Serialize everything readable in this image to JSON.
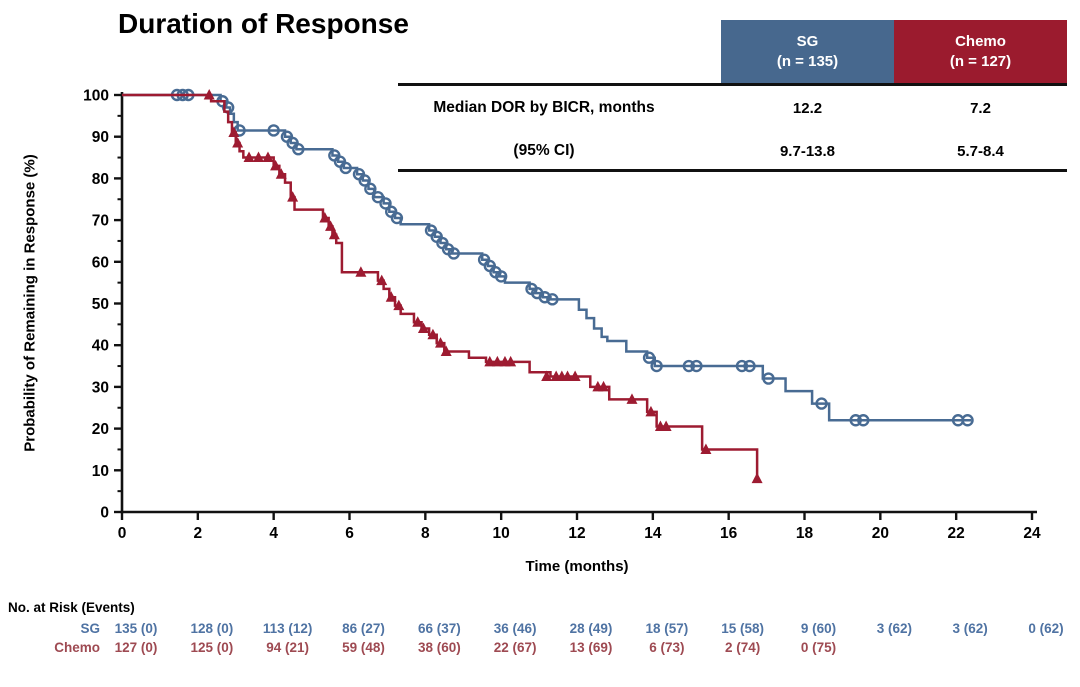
{
  "title": "Duration of Response",
  "summary_table": {
    "columns": [
      {
        "label": "SG",
        "sublabel": "(n = 135)",
        "color": "#47688e"
      },
      {
        "label": "Chemo",
        "sublabel": "(n = 127)",
        "color": "#9b1b2e"
      }
    ],
    "rows": [
      {
        "label": "Median DOR by BICR, months",
        "values": [
          "12.2",
          "7.2"
        ]
      },
      {
        "label": "(95% CI)",
        "values": [
          "9.7-13.8",
          "5.7-8.4"
        ]
      }
    ]
  },
  "chart_data": {
    "type": "line",
    "subtype": "kaplan-meier-step",
    "xlabel": "Time (months)",
    "ylabel": "Probability of Remaining in Response (%)",
    "xlim": [
      0,
      24
    ],
    "ylim": [
      0,
      100
    ],
    "xticks": [
      0,
      2,
      4,
      6,
      8,
      10,
      12,
      14,
      16,
      18,
      20,
      22,
      24
    ],
    "ytick_step": 10,
    "y_minor_step": 5,
    "grid": false,
    "legend_position": "none",
    "axis_color": "#111111",
    "series": [
      {
        "name": "SG",
        "color": "#486b93",
        "marker": "open-circle",
        "start": [
          0,
          100
        ],
        "steps": [
          [
            2.6,
            98.5
          ],
          [
            2.75,
            97
          ],
          [
            2.85,
            95.5
          ],
          [
            2.95,
            93.5
          ],
          [
            3.05,
            91.5
          ],
          [
            4.3,
            90
          ],
          [
            4.45,
            88.5
          ],
          [
            4.6,
            87
          ],
          [
            5.55,
            85.5
          ],
          [
            5.7,
            84
          ],
          [
            5.85,
            82.5
          ],
          [
            6.2,
            81
          ],
          [
            6.35,
            79.5
          ],
          [
            6.5,
            77.5
          ],
          [
            6.65,
            75.5
          ],
          [
            6.9,
            74
          ],
          [
            7.05,
            72
          ],
          [
            7.2,
            70.5
          ],
          [
            7.35,
            69
          ],
          [
            8.1,
            67.5
          ],
          [
            8.25,
            66
          ],
          [
            8.4,
            64.5
          ],
          [
            8.55,
            63
          ],
          [
            8.7,
            62
          ],
          [
            9.5,
            60.5
          ],
          [
            9.65,
            59
          ],
          [
            9.8,
            57.5
          ],
          [
            9.95,
            56.5
          ],
          [
            10.1,
            55
          ],
          [
            10.75,
            53.5
          ],
          [
            10.9,
            52.5
          ],
          [
            11.1,
            51.5
          ],
          [
            11.3,
            51
          ],
          [
            12.05,
            48.5
          ],
          [
            12.25,
            46.5
          ],
          [
            12.45,
            44
          ],
          [
            12.65,
            42
          ],
          [
            12.8,
            41
          ],
          [
            13.3,
            38.5
          ],
          [
            13.85,
            37
          ],
          [
            14.05,
            35
          ],
          [
            16.9,
            32
          ],
          [
            17.5,
            29
          ],
          [
            18.2,
            26
          ],
          [
            18.65,
            22
          ]
        ],
        "end_x": 22.4,
        "censors": [
          [
            1.45,
            100
          ],
          [
            1.6,
            100
          ],
          [
            1.75,
            100
          ],
          [
            2.65,
            98.5
          ],
          [
            2.8,
            97
          ],
          [
            3.1,
            91.5
          ],
          [
            4.0,
            91.5
          ],
          [
            4.35,
            90
          ],
          [
            4.5,
            88.5
          ],
          [
            4.65,
            87
          ],
          [
            5.6,
            85.5
          ],
          [
            5.75,
            84
          ],
          [
            5.9,
            82.5
          ],
          [
            6.25,
            81
          ],
          [
            6.4,
            79.5
          ],
          [
            6.55,
            77.5
          ],
          [
            6.75,
            75.5
          ],
          [
            6.95,
            74
          ],
          [
            7.1,
            72
          ],
          [
            7.25,
            70.5
          ],
          [
            8.15,
            67.5
          ],
          [
            8.3,
            66
          ],
          [
            8.45,
            64.5
          ],
          [
            8.6,
            63
          ],
          [
            8.75,
            62
          ],
          [
            9.55,
            60.5
          ],
          [
            9.7,
            59
          ],
          [
            9.85,
            57.5
          ],
          [
            10.0,
            56.5
          ],
          [
            10.8,
            53.5
          ],
          [
            10.95,
            52.5
          ],
          [
            11.15,
            51.5
          ],
          [
            11.35,
            51
          ],
          [
            13.9,
            37
          ],
          [
            14.1,
            35
          ],
          [
            14.95,
            35
          ],
          [
            15.15,
            35
          ],
          [
            16.35,
            35
          ],
          [
            16.55,
            35
          ],
          [
            17.05,
            32
          ],
          [
            18.45,
            26
          ],
          [
            19.35,
            22
          ],
          [
            19.55,
            22
          ],
          [
            22.05,
            22
          ],
          [
            22.3,
            22
          ]
        ]
      },
      {
        "name": "Chemo",
        "color": "#9d1b31",
        "marker": "filled-triangle",
        "start": [
          0,
          100
        ],
        "steps": [
          [
            2.35,
            98.5
          ],
          [
            2.7,
            96
          ],
          [
            2.8,
            93.5
          ],
          [
            2.9,
            91
          ],
          [
            3.0,
            88.5
          ],
          [
            3.1,
            86.5
          ],
          [
            3.2,
            85
          ],
          [
            4.0,
            83
          ],
          [
            4.15,
            81
          ],
          [
            4.3,
            79
          ],
          [
            4.45,
            75.5
          ],
          [
            4.55,
            72.5
          ],
          [
            5.3,
            70.5
          ],
          [
            5.45,
            68.5
          ],
          [
            5.55,
            66.5
          ],
          [
            5.65,
            64.5
          ],
          [
            5.8,
            57.5
          ],
          [
            6.75,
            55.5
          ],
          [
            6.9,
            53.5
          ],
          [
            7.05,
            51.5
          ],
          [
            7.2,
            49.5
          ],
          [
            7.35,
            47.5
          ],
          [
            7.7,
            45.5
          ],
          [
            7.9,
            44
          ],
          [
            8.1,
            42.5
          ],
          [
            8.3,
            40.5
          ],
          [
            8.5,
            38.5
          ],
          [
            9.15,
            37
          ],
          [
            9.6,
            36
          ],
          [
            10.75,
            33.5
          ],
          [
            11.3,
            32.5
          ],
          [
            12.35,
            30
          ],
          [
            12.85,
            27
          ],
          [
            13.85,
            24
          ],
          [
            14.1,
            20.5
          ],
          [
            15.3,
            15
          ],
          [
            16.75,
            8
          ]
        ],
        "end_x": 16.75,
        "censors": [
          [
            2.3,
            100
          ],
          [
            2.95,
            91
          ],
          [
            3.05,
            88.5
          ],
          [
            3.35,
            85
          ],
          [
            3.6,
            85
          ],
          [
            3.85,
            85
          ],
          [
            4.05,
            83
          ],
          [
            4.2,
            81
          ],
          [
            4.5,
            75.5
          ],
          [
            5.35,
            70.5
          ],
          [
            5.5,
            68.5
          ],
          [
            5.6,
            66.5
          ],
          [
            6.3,
            57.5
          ],
          [
            6.85,
            55.5
          ],
          [
            7.1,
            51.5
          ],
          [
            7.3,
            49.5
          ],
          [
            7.8,
            45.5
          ],
          [
            7.95,
            44
          ],
          [
            8.2,
            42.5
          ],
          [
            8.4,
            40.5
          ],
          [
            8.55,
            38.5
          ],
          [
            9.7,
            36
          ],
          [
            9.9,
            36
          ],
          [
            10.1,
            36
          ],
          [
            10.25,
            36
          ],
          [
            11.2,
            32.5
          ],
          [
            11.45,
            32.5
          ],
          [
            11.6,
            32.5
          ],
          [
            11.75,
            32.5
          ],
          [
            11.95,
            32.5
          ],
          [
            12.55,
            30
          ],
          [
            12.7,
            30
          ],
          [
            13.45,
            27
          ],
          [
            13.95,
            24
          ],
          [
            14.2,
            20.5
          ],
          [
            14.35,
            20.5
          ],
          [
            15.4,
            15
          ],
          [
            16.75,
            8
          ]
        ]
      }
    ]
  },
  "risk_table": {
    "title": "No. at Risk (Events)",
    "time_points": [
      0,
      2,
      4,
      6,
      8,
      10,
      12,
      14,
      16,
      18,
      20,
      22,
      24
    ],
    "rows": [
      {
        "name": "SG",
        "color": "#4f73a3",
        "values": [
          "135 (0)",
          "128 (0)",
          "113 (12)",
          "86 (27)",
          "66 (37)",
          "36 (46)",
          "28 (49)",
          "18 (57)",
          "15 (58)",
          "9 (60)",
          "3 (62)",
          "3 (62)",
          "0 (62)"
        ]
      },
      {
        "name": "Chemo",
        "color": "#9e4a52",
        "values": [
          "127 (0)",
          "125 (0)",
          "94 (21)",
          "59 (48)",
          "38 (60)",
          "22 (67)",
          "13 (69)",
          "6 (73)",
          "2 (74)",
          "0 (75)"
        ]
      }
    ]
  }
}
